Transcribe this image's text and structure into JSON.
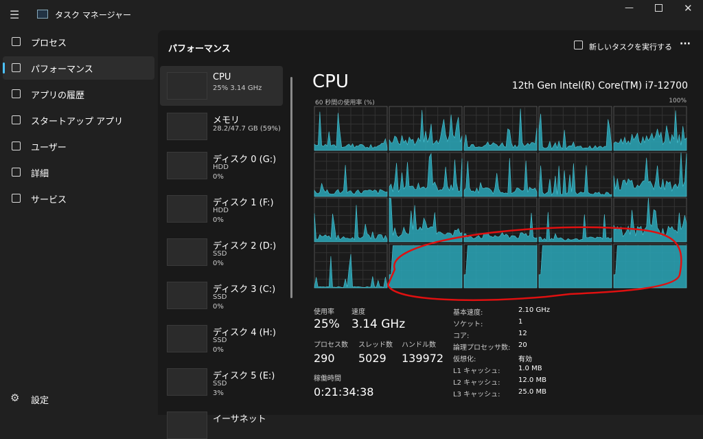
{
  "window": {
    "title": "タスク マネージャー"
  },
  "nav": [
    {
      "label": "プロセス"
    },
    {
      "label": "パフォーマンス"
    },
    {
      "label": "アプリの履歴"
    },
    {
      "label": "スタートアップ アプリ"
    },
    {
      "label": "ユーザー"
    },
    {
      "label": "詳細"
    },
    {
      "label": "サービス"
    }
  ],
  "settings": "設定",
  "header": {
    "title": "パフォーマンス",
    "run_task": "新しいタスクを実行する"
  },
  "devices": [
    {
      "name": "CPU",
      "detail": "25%  3.14 GHz"
    },
    {
      "name": "メモリ",
      "detail": "28.2/47.7 GB (59%)"
    },
    {
      "name": "ディスク 0 (G:)",
      "kind": "HDD",
      "usage": "0%"
    },
    {
      "name": "ディスク 1 (F:)",
      "kind": "HDD",
      "usage": "0%"
    },
    {
      "name": "ディスク 2 (D:)",
      "kind": "SSD",
      "usage": "0%"
    },
    {
      "name": "ディスク 3 (C:)",
      "kind": "SSD",
      "usage": "0%"
    },
    {
      "name": "ディスク 4 (H:)",
      "kind": "SSD",
      "usage": "0%"
    },
    {
      "name": "ディスク 5 (E:)",
      "kind": "SSD",
      "usage": "3%"
    },
    {
      "name": "イーサネット"
    }
  ],
  "cpu": {
    "title": "CPU",
    "model": "12th Gen Intel(R) Core(TM) i7-12700",
    "graph_label": "60 秒間の使用率 (%)",
    "graph_max": "100%",
    "stats": [
      {
        "label": "使用率",
        "value": "25%"
      },
      {
        "label": "速度",
        "value": "3.14 GHz"
      },
      {
        "label": "プロセス数",
        "value": "290"
      },
      {
        "label": "スレッド数",
        "value": "5029"
      },
      {
        "label": "ハンドル数",
        "value": "139972"
      },
      {
        "label": "稼働時間",
        "value": "0:21:34:38"
      }
    ],
    "specs": [
      [
        "基本速度:",
        "2.10 GHz"
      ],
      [
        "ソケット:",
        "1"
      ],
      [
        "コア:",
        "12"
      ],
      [
        "論理プロセッサ数:",
        "20"
      ],
      [
        "仮想化:",
        "有効"
      ],
      [
        "L1 キャッシュ:",
        "1.0 MB"
      ],
      [
        "L2 キャッシュ:",
        "12.0 MB"
      ],
      [
        "L3 キャッシュ:",
        "25.0 MB"
      ]
    ]
  }
}
